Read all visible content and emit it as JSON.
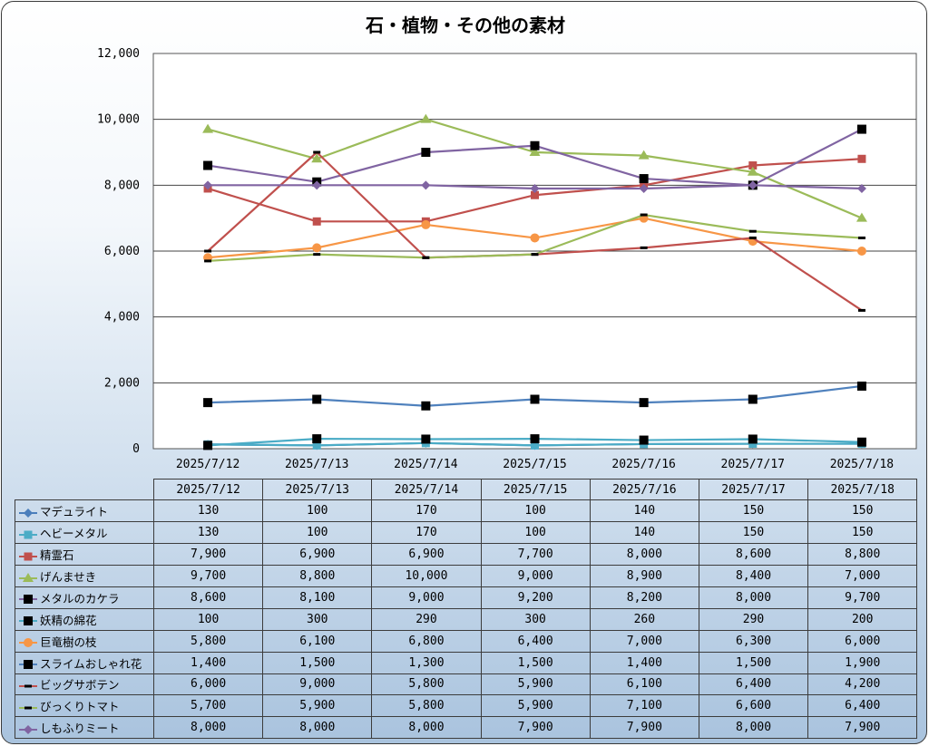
{
  "chart_data": {
    "type": "line",
    "title": "石・植物・その他の素材",
    "categories": [
      "2025/7/12",
      "2025/7/13",
      "2025/7/14",
      "2025/7/15",
      "2025/7/16",
      "2025/7/17",
      "2025/7/18"
    ],
    "ylim": [
      0,
      12000
    ],
    "yticks": [
      "0",
      "2,000",
      "4,000",
      "6,000",
      "8,000",
      "10,000",
      "12,000"
    ],
    "ytick_values": [
      0,
      2000,
      4000,
      6000,
      8000,
      10000,
      12000
    ],
    "grid": true,
    "legend": "data-table",
    "series": [
      {
        "name": "マデュライト",
        "color": "#4a7ebb",
        "marker": "diamond",
        "values": [
          130,
          100,
          170,
          100,
          140,
          150,
          150
        ],
        "labels": [
          "130",
          "100",
          "170",
          "100",
          "140",
          "150",
          "150"
        ]
      },
      {
        "name": "ヘビーメタル",
        "color": "#4bacc6",
        "marker": "square",
        "values": [
          130,
          100,
          170,
          100,
          140,
          150,
          150
        ],
        "labels": [
          "130",
          "100",
          "170",
          "100",
          "140",
          "150",
          "150"
        ]
      },
      {
        "name": "精霊石",
        "color": "#c0504d",
        "marker": "square",
        "values": [
          7900,
          6900,
          6900,
          7700,
          8000,
          8600,
          8800
        ],
        "labels": [
          "7,900",
          "6,900",
          "6,900",
          "7,700",
          "8,000",
          "8,600",
          "8,800"
        ]
      },
      {
        "name": "げんませき",
        "color": "#9bbb59",
        "marker": "triangle",
        "values": [
          9700,
          8800,
          10000,
          9000,
          8900,
          8400,
          7000
        ],
        "labels": [
          "9,700",
          "8,800",
          "10,000",
          "9,000",
          "8,900",
          "8,400",
          "7,000"
        ]
      },
      {
        "name": "メタルのカケラ",
        "color": "#8064a2",
        "marker": "blacksquare",
        "values": [
          8600,
          8100,
          9000,
          9200,
          8200,
          8000,
          9700
        ],
        "labels": [
          "8,600",
          "8,100",
          "9,000",
          "9,200",
          "8,200",
          "8,000",
          "9,700"
        ]
      },
      {
        "name": "妖精の綿花",
        "color": "#4bacc6",
        "marker": "blacksquare",
        "values": [
          100,
          300,
          290,
          300,
          260,
          290,
          200
        ],
        "labels": [
          "100",
          "300",
          "290",
          "300",
          "260",
          "290",
          "200"
        ]
      },
      {
        "name": "巨竜樹の枝",
        "color": "#f79646",
        "marker": "circle",
        "values": [
          5800,
          6100,
          6800,
          6400,
          7000,
          6300,
          6000
        ],
        "labels": [
          "5,800",
          "6,100",
          "6,800",
          "6,400",
          "7,000",
          "6,300",
          "6,000"
        ]
      },
      {
        "name": "スライムおしゃれ花",
        "color": "#4f81bd",
        "marker": "blacksquare",
        "values": [
          1400,
          1500,
          1300,
          1500,
          1400,
          1500,
          1900
        ],
        "labels": [
          "1,400",
          "1,500",
          "1,300",
          "1,500",
          "1,400",
          "1,500",
          "1,900"
        ]
      },
      {
        "name": "ビッグサボテン",
        "color": "#c0504d",
        "marker": "dash",
        "values": [
          6000,
          9000,
          5800,
          5900,
          6100,
          6400,
          4200
        ],
        "labels": [
          "6,000",
          "9,000",
          "5,800",
          "5,900",
          "6,100",
          "6,400",
          "4,200"
        ]
      },
      {
        "name": "びっくりトマト",
        "color": "#9bbb59",
        "marker": "dash",
        "values": [
          5700,
          5900,
          5800,
          5900,
          7100,
          6600,
          6400
        ],
        "labels": [
          "5,700",
          "5,900",
          "5,800",
          "5,900",
          "7,100",
          "6,600",
          "6,400"
        ]
      },
      {
        "name": "しもふりミート",
        "color": "#8064a2",
        "marker": "diamond",
        "values": [
          8000,
          8000,
          8000,
          7900,
          7900,
          8000,
          7900
        ],
        "labels": [
          "8,000",
          "8,000",
          "8,000",
          "7,900",
          "7,900",
          "8,000",
          "7,900"
        ]
      }
    ]
  }
}
